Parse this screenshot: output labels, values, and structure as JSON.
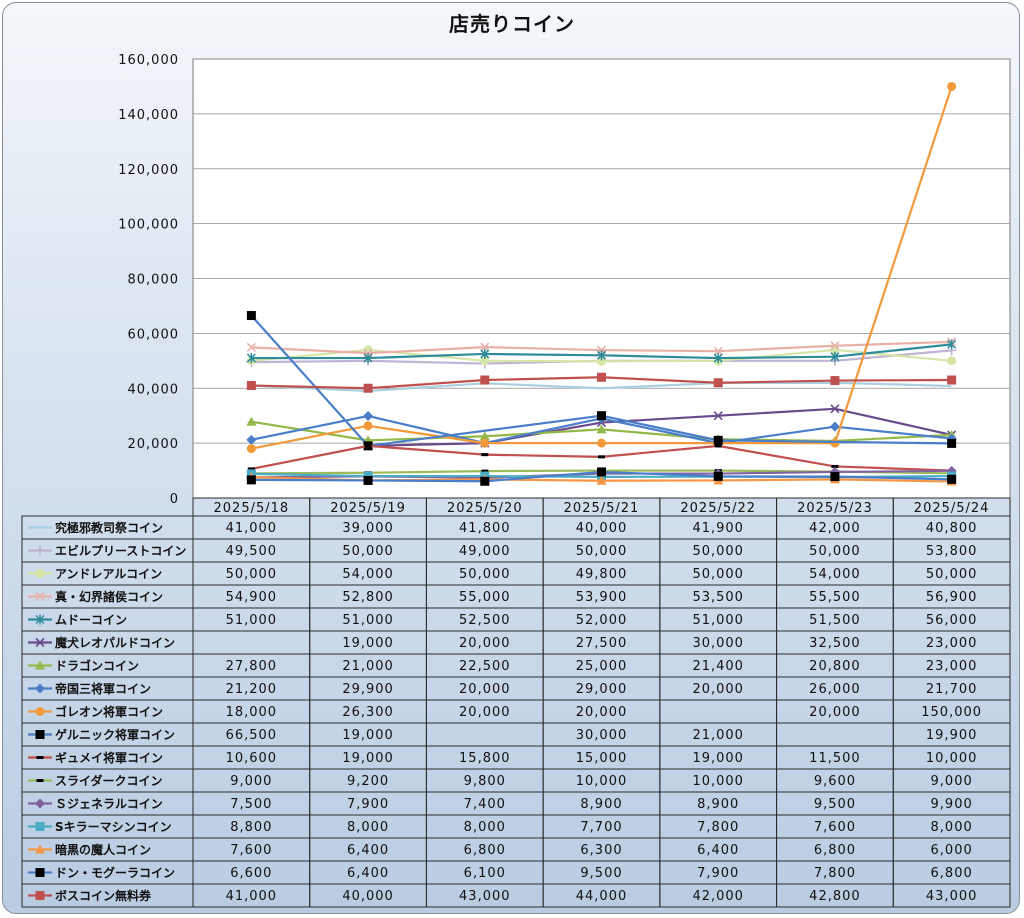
{
  "chart_data": {
    "type": "line",
    "title": "店売りコイン",
    "ylim": [
      0,
      160000
    ],
    "yticks": [
      "0",
      "20,000",
      "40,000",
      "60,000",
      "80,000",
      "100,000",
      "120,000",
      "140,000",
      "160,000"
    ],
    "grid": true,
    "legend": "data-table",
    "categories": [
      "2025/5/18",
      "2025/5/19",
      "2025/5/20",
      "2025/5/21",
      "2025/5/22",
      "2025/5/23",
      "2025/5/24"
    ],
    "series": [
      {
        "name": "究極邪教司祭コイン",
        "color": "#a9cfe0",
        "marker": "none",
        "values": [
          41000,
          39000,
          41800,
          40000,
          41900,
          42000,
          40800
        ],
        "labels": [
          "41,000",
          "39,000",
          "41,800",
          "40,000",
          "41,900",
          "42,000",
          "40,800"
        ]
      },
      {
        "name": "エビルプリーストコイン",
        "color": "#c0b4d2",
        "marker": "plus",
        "values": [
          49500,
          50000,
          49000,
          50000,
          50000,
          50000,
          53800
        ],
        "labels": [
          "49,500",
          "50,000",
          "49,000",
          "50,000",
          "50,000",
          "50,000",
          "53,800"
        ]
      },
      {
        "name": "アンドレアルコイン",
        "color": "#d6e6a6",
        "marker": "circle",
        "values": [
          50000,
          54000,
          50000,
          49800,
          50000,
          54000,
          50000
        ],
        "labels": [
          "50,000",
          "54,000",
          "50,000",
          "49,800",
          "50,000",
          "54,000",
          "50,000"
        ]
      },
      {
        "name": "真・幻界諸侯コイン",
        "color": "#e8b1a8",
        "marker": "x",
        "values": [
          54900,
          52800,
          55000,
          53900,
          53500,
          55500,
          56900
        ],
        "labels": [
          "54,900",
          "52,800",
          "55,000",
          "53,900",
          "53,500",
          "55,500",
          "56,900"
        ]
      },
      {
        "name": "ムドーコイン",
        "color": "#2e8b9a",
        "marker": "star",
        "values": [
          51000,
          51000,
          52500,
          52000,
          51000,
          51500,
          56000
        ],
        "labels": [
          "51,000",
          "51,000",
          "52,500",
          "52,000",
          "51,000",
          "51,500",
          "56,000"
        ]
      },
      {
        "name": "魔犬レオパルドコイン",
        "color": "#6a4a8c",
        "marker": "x",
        "values": [
          null,
          19000,
          20000,
          27500,
          30000,
          32500,
          23000
        ],
        "labels": [
          "",
          "19,000",
          "20,000",
          "27,500",
          "30,000",
          "32,500",
          "23,000"
        ]
      },
      {
        "name": "ドラゴンコイン",
        "color": "#94b94a",
        "marker": "triangle",
        "values": [
          27800,
          21000,
          22500,
          25000,
          21400,
          20800,
          23000
        ],
        "labels": [
          "27,800",
          "21,000",
          "22,500",
          "25,000",
          "21,400",
          "20,800",
          "23,000"
        ]
      },
      {
        "name": "帝国三将軍コイン",
        "color": "#4a7ec8",
        "marker": "diamond",
        "values": [
          21200,
          29900,
          20000,
          29000,
          20000,
          26000,
          21700
        ],
        "labels": [
          "21,200",
          "29,900",
          "20,000",
          "29,000",
          "20,000",
          "26,000",
          "21,700"
        ]
      },
      {
        "name": "ゴレオン将軍コイン",
        "color": "#f29a3a",
        "marker": "circle",
        "values": [
          18000,
          26300,
          20000,
          20000,
          null,
          20000,
          150000
        ],
        "labels": [
          "18,000",
          "26,300",
          "20,000",
          "20,000",
          "",
          "20,000",
          "150,000"
        ]
      },
      {
        "name": "ゲルニック将軍コイン",
        "color": "#4a7ec8",
        "marker": "square-black",
        "values": [
          66500,
          19000,
          null,
          30000,
          21000,
          null,
          19900
        ],
        "labels": [
          "66,500",
          "19,000",
          "",
          "30,000",
          "21,000",
          "",
          "19,900"
        ]
      },
      {
        "name": "ギュメイ将軍コイン",
        "color": "#c0504d",
        "marker": "dash-black",
        "values": [
          10600,
          19000,
          15800,
          15000,
          19000,
          11500,
          10000
        ],
        "labels": [
          "10,600",
          "19,000",
          "15,800",
          "15,000",
          "19,000",
          "11,500",
          "10,000"
        ]
      },
      {
        "name": "スライダークコイン",
        "color": "#9bbb59",
        "marker": "dash-black",
        "values": [
          9000,
          9200,
          9800,
          10000,
          10000,
          9600,
          9000
        ],
        "labels": [
          "9,000",
          "9,200",
          "9,800",
          "10,000",
          "10,000",
          "9,600",
          "9,000"
        ]
      },
      {
        "name": "Ｓジェネラルコイン",
        "color": "#8064a2",
        "marker": "diamond",
        "values": [
          7500,
          7900,
          7400,
          8900,
          8900,
          9500,
          9900
        ],
        "labels": [
          "7,500",
          "7,900",
          "7,400",
          "8,900",
          "8,900",
          "9,500",
          "9,900"
        ]
      },
      {
        "name": "Sキラーマシンコイン",
        "color": "#4bacc6",
        "marker": "square",
        "values": [
          8800,
          8000,
          8000,
          7700,
          7800,
          7600,
          8000
        ],
        "labels": [
          "8,800",
          "8,000",
          "8,000",
          "7,700",
          "7,800",
          "7,600",
          "8,000"
        ]
      },
      {
        "name": "暗黒の魔人コイン",
        "color": "#f79646",
        "marker": "triangle",
        "values": [
          7600,
          6400,
          6800,
          6300,
          6400,
          6800,
          6000
        ],
        "labels": [
          "7,600",
          "6,400",
          "6,800",
          "6,300",
          "6,400",
          "6,800",
          "6,000"
        ]
      },
      {
        "name": "ドン・モグーラコイン",
        "color": "#4a7ec8",
        "marker": "square-black",
        "values": [
          6600,
          6400,
          6100,
          9500,
          7900,
          7800,
          6800
        ],
        "labels": [
          "6,600",
          "6,400",
          "6,100",
          "9,500",
          "7,900",
          "7,800",
          "6,800"
        ]
      },
      {
        "name": "ボスコイン無料券",
        "color": "#c0504d",
        "marker": "square",
        "values": [
          41000,
          40000,
          43000,
          44000,
          42000,
          42800,
          43000
        ],
        "labels": [
          "41,000",
          "40,000",
          "43,000",
          "44,000",
          "42,000",
          "42,800",
          "43,000"
        ]
      }
    ]
  }
}
